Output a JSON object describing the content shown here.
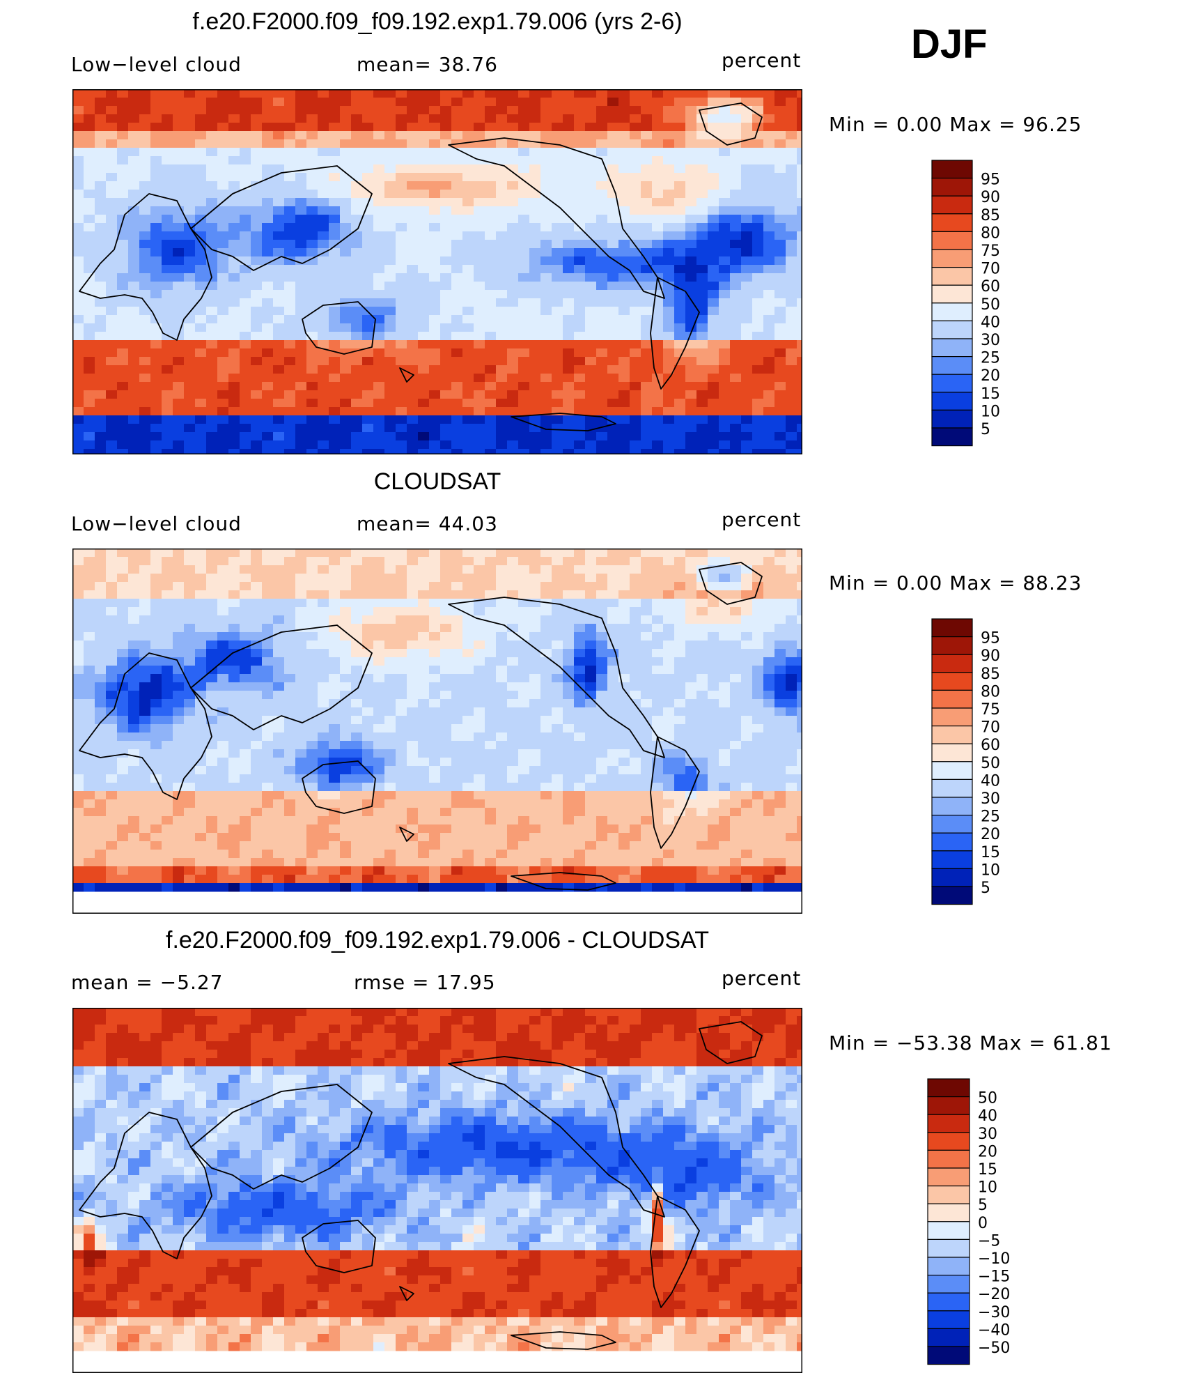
{
  "season": "DJF",
  "colors": {
    "model_scale": [
      "#000a78",
      "#0022b8",
      "#0a3fe0",
      "#2a64f5",
      "#5b8df7",
      "#8fb3f8",
      "#bdd5fb",
      "#dfeefe",
      "#fde6d6",
      "#fbc6a7",
      "#f89d75",
      "#f37348",
      "#e7491f",
      "#c92a10",
      "#9e1607",
      "#6e0802"
    ],
    "diff_scale": [
      "#000a78",
      "#0022b8",
      "#0a3fe0",
      "#2a64f5",
      "#5b8df7",
      "#8fb3f8",
      "#bdd5fb",
      "#dfeefe",
      "#fde6d6",
      "#fbc6a7",
      "#f89d75",
      "#f37348",
      "#e7491f",
      "#c92a10",
      "#9e1607",
      "#6e0802"
    ],
    "land_mask": "#ffffff"
  },
  "chart_data": [
    {
      "type": "heatmap",
      "title": "f.e20.F2000.f09_f09.192.exp1.79.006 (yrs 2-6)",
      "variable": "Low−level cloud",
      "mean_text": "mean=   38.76",
      "units": "percent",
      "minmax_text": "Min  =     0.00  Max  =    96.25",
      "colorbar_levels": [
        "95",
        "90",
        "85",
        "80",
        "75",
        "70",
        "60",
        "50",
        "40",
        "30",
        "25",
        "20",
        "15",
        "10",
        "5"
      ]
    },
    {
      "type": "heatmap",
      "title": "CLOUDSAT",
      "variable": "Low−level cloud",
      "mean_text": "mean=   44.03",
      "units": "percent",
      "minmax_text": "Min  =     0.00  Max  =    88.23",
      "colorbar_levels": [
        "95",
        "90",
        "85",
        "80",
        "75",
        "70",
        "60",
        "50",
        "40",
        "30",
        "25",
        "20",
        "15",
        "10",
        "5"
      ]
    },
    {
      "type": "heatmap",
      "title": "f.e20.F2000.f09_f09.192.exp1.79.006 - CLOUDSAT",
      "variable": "mean  =    −5.27",
      "mean_text": "rmse  =    17.95",
      "units": "percent",
      "minmax_text": "Min  = −53.38  Max  =    61.81",
      "colorbar_levels": [
        "50",
        "40",
        "30",
        "20",
        "15",
        "10",
        "5",
        "0",
        "−5",
        "−10",
        "−15",
        "−20",
        "−30",
        "−40",
        "−50"
      ]
    }
  ]
}
